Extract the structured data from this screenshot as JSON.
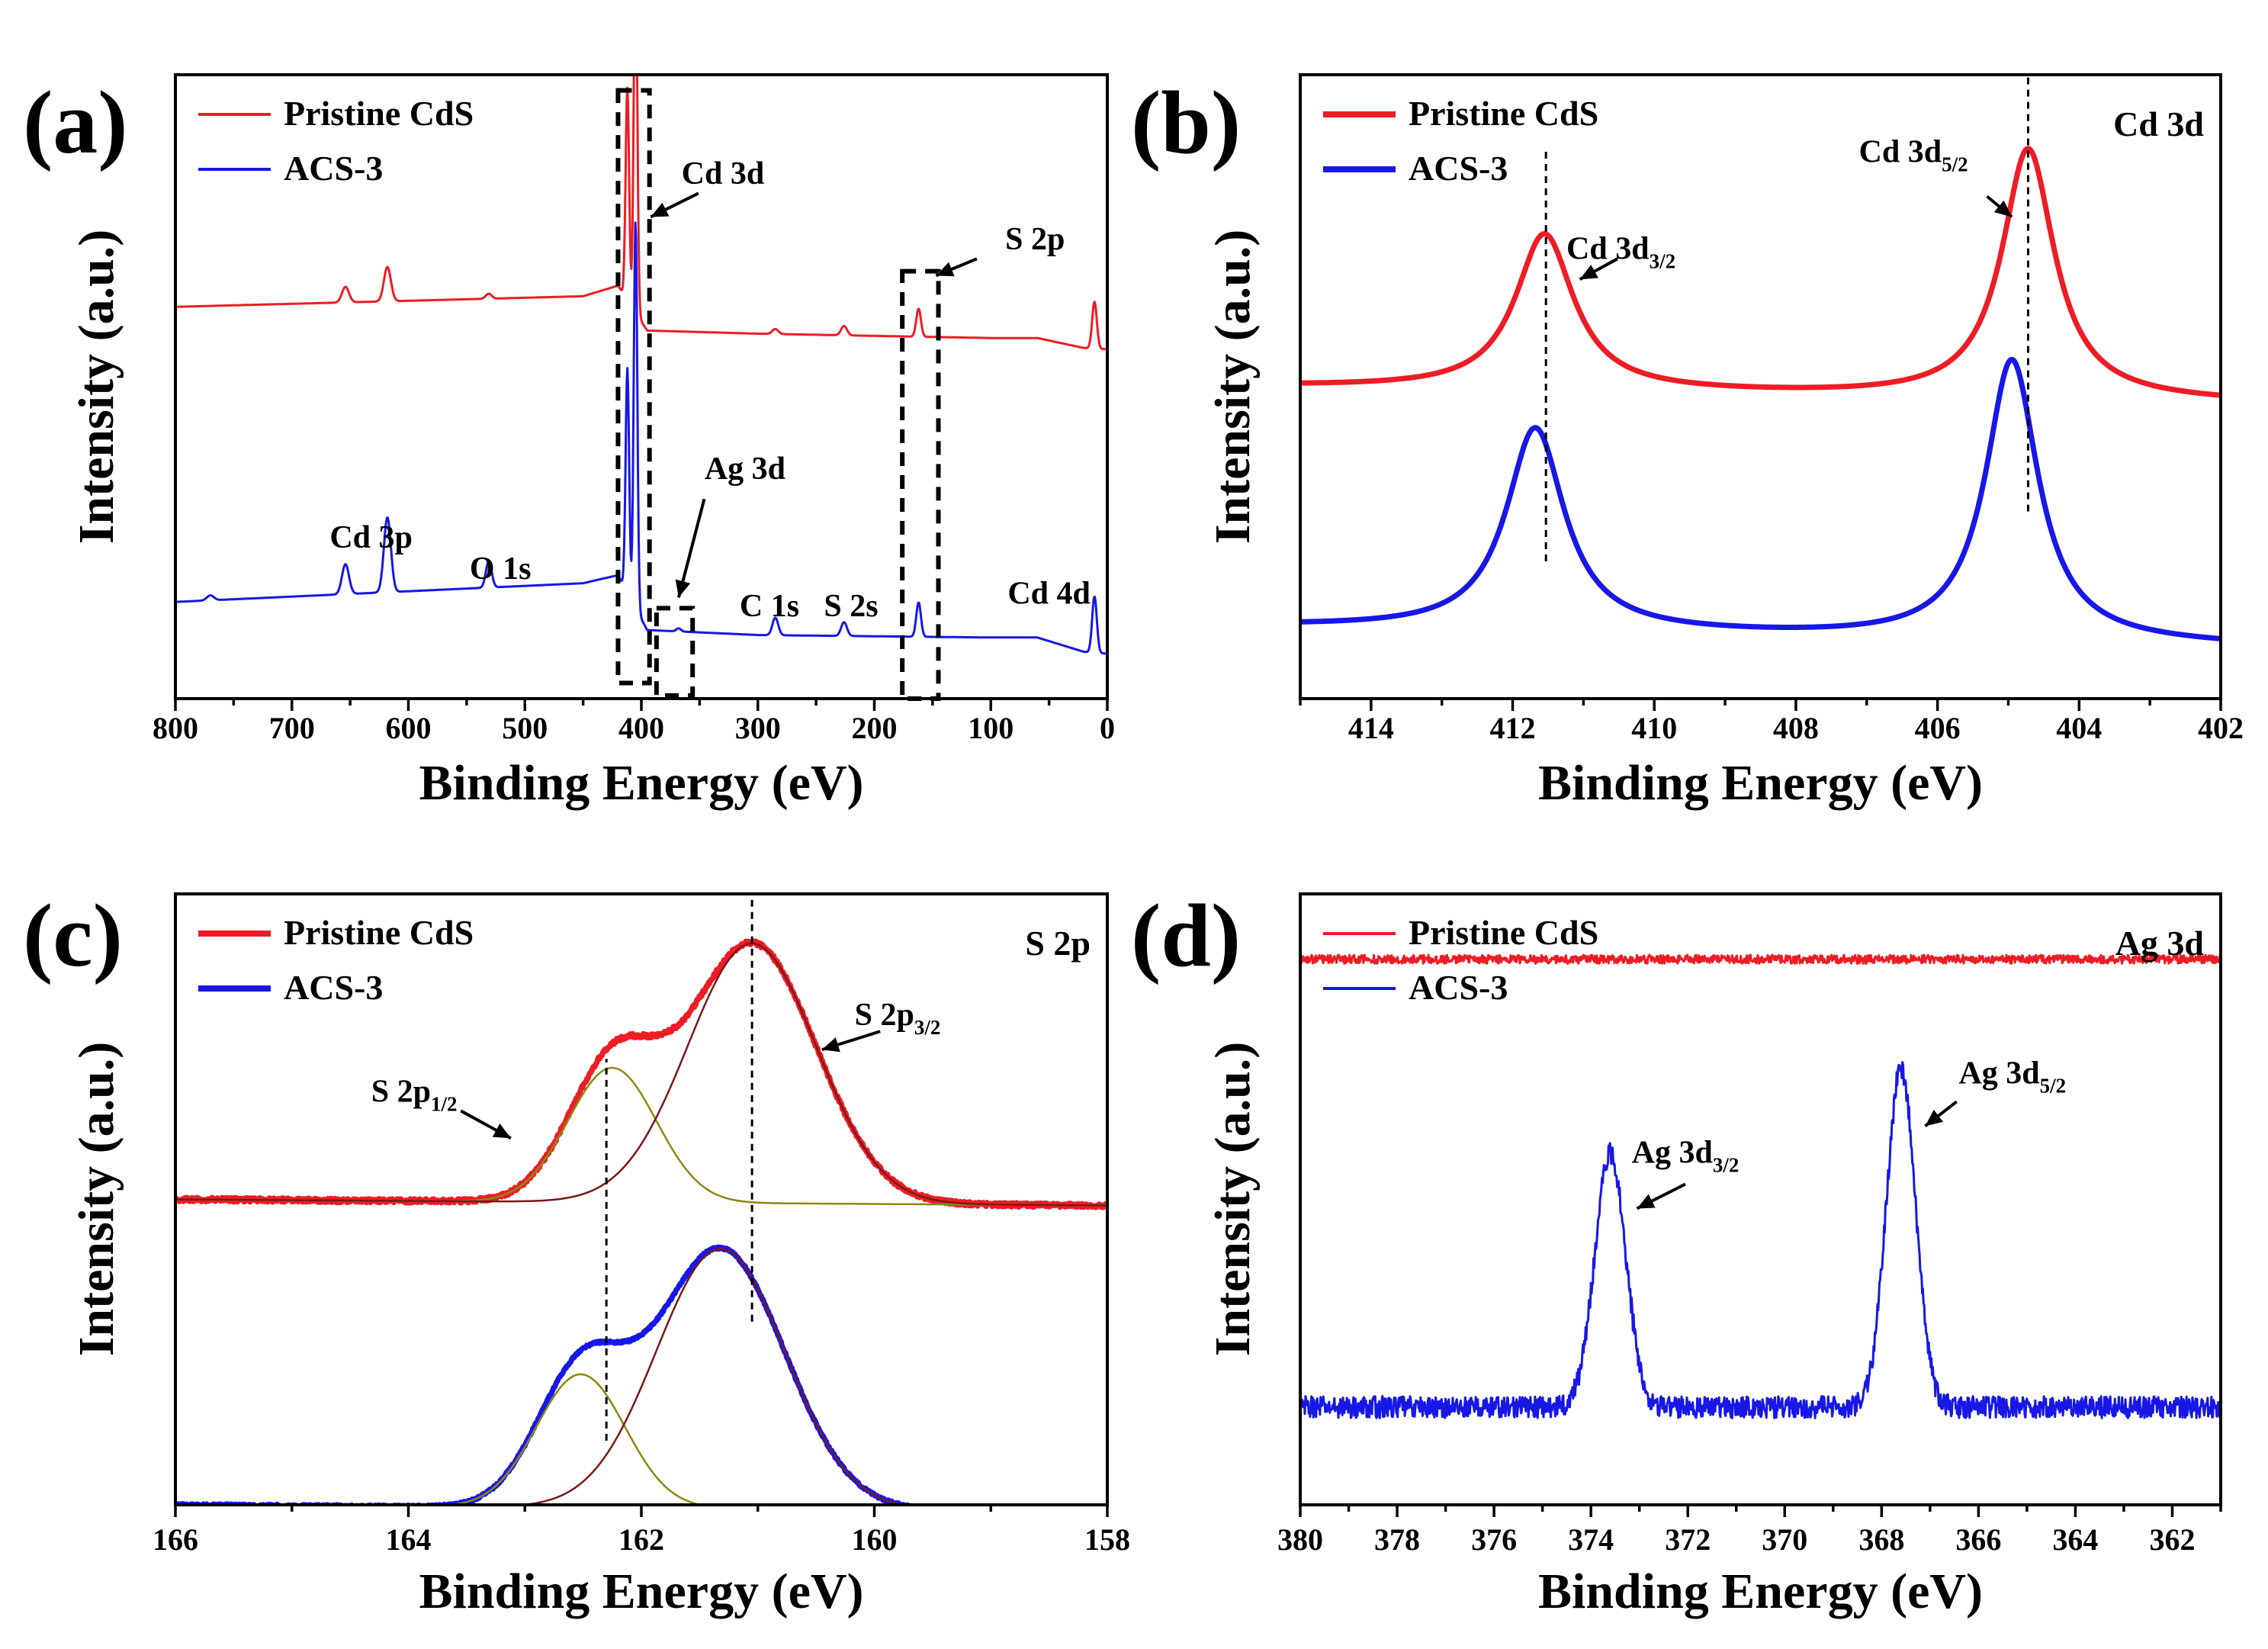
{
  "colors": {
    "pristine": "#ee1c25",
    "acs": "#1717e8",
    "fit_component": "#8a8a10",
    "fit_envelope": "#7a1818",
    "axis": "#000000"
  },
  "chart_data": [
    {
      "id": "a",
      "type": "line",
      "panel_label": "(a)",
      "title": "",
      "xlabel": "Binding Energy (eV)",
      "ylabel": "Intensity (a.u.)",
      "xlim": [
        800,
        0
      ],
      "xticks": [
        800,
        700,
        600,
        500,
        400,
        300,
        200,
        100,
        0
      ],
      "ylim": [
        0,
        10
      ],
      "legend": [
        "Pristine CdS",
        "ACS-3"
      ],
      "legend_position": "top-left",
      "series": [
        {
          "name": "Pristine CdS",
          "color_key": "pristine",
          "line_width": 3,
          "baseline": [
            [
              800,
              6.28
            ],
            [
              450,
              6.45
            ],
            [
              420,
              6.62
            ],
            [
              395,
              5.9
            ],
            [
              300,
              5.85
            ],
            [
              100,
              5.78
            ],
            [
              60,
              5.78
            ],
            [
              20,
              5.62
            ],
            [
              0,
              5.6
            ]
          ],
          "peaks": [
            [
              654,
              0.25,
              3
            ],
            [
              618,
              0.55,
              3
            ],
            [
              531,
              0.08,
              2.5
            ],
            [
              412,
              3.4,
              1.5
            ],
            [
              405,
              5.9,
              1.5
            ],
            [
              285,
              0.08,
              2.5
            ],
            [
              226,
              0.15,
              2.5
            ],
            [
              162,
              0.45,
              2
            ],
            [
              11,
              0.75,
              2
            ]
          ]
        },
        {
          "name": "ACS-3",
          "color_key": "acs",
          "line_width": 3,
          "baseline": [
            [
              800,
              1.55
            ],
            [
              450,
              1.85
            ],
            [
              420,
              1.98
            ],
            [
              395,
              1.1
            ],
            [
              300,
              1.02
            ],
            [
              100,
              0.98
            ],
            [
              60,
              0.98
            ],
            [
              20,
              0.75
            ],
            [
              0,
              0.72
            ]
          ],
          "peaks": [
            [
              770,
              0.08,
              3
            ],
            [
              654,
              0.48,
              3
            ],
            [
              618,
              1.2,
              3
            ],
            [
              531,
              0.42,
              2.5
            ],
            [
              412,
              3.6,
              1.5
            ],
            [
              405,
              6.2,
              1.5
            ],
            [
              368,
              0.05,
              2
            ],
            [
              285,
              0.28,
              2.5
            ],
            [
              226,
              0.22,
              2.5
            ],
            [
              162,
              0.55,
              2
            ],
            [
              11,
              0.9,
              2
            ]
          ]
        }
      ],
      "annotations": [
        {
          "text": "Cd 3d",
          "x": 330,
          "y": 8.25
        },
        {
          "text": "S 2p",
          "x": 62,
          "y": 7.2
        },
        {
          "text": "Ag 3d",
          "x": 311,
          "y": 3.52
        },
        {
          "text": "Cd 3p",
          "x": 632,
          "y": 2.42
        },
        {
          "text": "O 1s",
          "x": 521,
          "y": 1.92
        },
        {
          "text": "C 1s",
          "x": 290,
          "y": 1.32
        },
        {
          "text": "S 2s",
          "x": 220,
          "y": 1.32
        },
        {
          "text": "Cd 4d",
          "x": 50,
          "y": 1.52
        }
      ],
      "boxes": [
        {
          "x": [
            420,
            393
          ],
          "y": [
            0.25,
            9.75
          ]
        },
        {
          "x": [
            387,
            356
          ],
          "y": [
            0.05,
            1.45
          ]
        },
        {
          "x": [
            176,
            145
          ],
          "y": [
            0.0,
            6.85
          ]
        }
      ],
      "arrows": [
        {
          "from": [
            351,
            8.1
          ],
          "to": [
            392,
            7.72
          ]
        },
        {
          "from": [
            112,
            7.05
          ],
          "to": [
            147,
            6.78
          ]
        },
        {
          "from": [
            346,
            3.2
          ],
          "to": [
            368,
            1.62
          ]
        }
      ]
    },
    {
      "id": "b",
      "type": "line",
      "panel_label": "(b)",
      "title": "",
      "corner_label": "Cd 3d",
      "xlabel": "Binding Energy (eV)",
      "ylabel": "Intensity (a.u.)",
      "xlim": [
        415,
        402
      ],
      "xticks": [
        414,
        412,
        410,
        408,
        406,
        404,
        402
      ],
      "ylim": [
        0,
        10
      ],
      "legend": [
        "Pristine CdS",
        "ACS-3"
      ],
      "legend_position": "top-left",
      "series": [
        {
          "name": "Pristine CdS",
          "color_key": "pristine",
          "line_width": 7,
          "baseline": [
            [
              415,
              5.0
            ],
            [
              402,
              4.75
            ]
          ],
          "peaks": [
            [
              411.55,
              2.5,
              0.5,
              "lorentz"
            ],
            [
              404.72,
              4.0,
              0.45,
              "lorentz"
            ]
          ]
        },
        {
          "name": "ACS-3",
          "color_key": "acs",
          "line_width": 7,
          "baseline": [
            [
              415,
              1.15
            ],
            [
              402,
              0.85
            ]
          ],
          "peaks": [
            [
              411.68,
              3.25,
              0.5,
              "lorentz"
            ],
            [
              404.95,
              4.5,
              0.45,
              "lorentz"
            ]
          ]
        }
      ],
      "annotations": [
        {
          "text": "Cd 3d",
          "sub": "3/2",
          "x": 410.47,
          "y": 7.05
        },
        {
          "text": "Cd 3d",
          "sub": "5/2",
          "x": 406.34,
          "y": 8.6
        }
      ],
      "vlines": [
        {
          "x": 411.53,
          "y": [
            2.2,
            8.85
          ]
        },
        {
          "x": 404.72,
          "y": [
            3.0,
            10.0
          ]
        }
      ],
      "arrows": [
        {
          "from": [
            410.52,
            7.05
          ],
          "to": [
            411.05,
            6.72
          ]
        },
        {
          "from": [
            405.3,
            8.05
          ],
          "to": [
            404.95,
            7.72
          ]
        }
      ]
    },
    {
      "id": "c",
      "type": "line",
      "panel_label": "(c)",
      "title": "",
      "corner_label": "S 2p",
      "xlabel": "Binding Energy (eV)",
      "ylabel": "Intensity (a.u.)",
      "xlim": [
        166,
        158
      ],
      "xticks": [
        166,
        164,
        162,
        160,
        158
      ],
      "ylim": [
        0,
        10
      ],
      "legend": [
        "Pristine CdS",
        "ACS-3"
      ],
      "legend_position": "top-left",
      "series": [
        {
          "name": "Pristine CdS",
          "color_key": "pristine",
          "line_width": 7,
          "noise": 0.035,
          "baseline": [
            [
              166,
              5.0
            ],
            [
              158,
              4.9
            ]
          ],
          "peaks": [
            [
              162.25,
              2.2,
              0.38
            ],
            [
              161.05,
              4.25,
              0.55
            ]
          ]
        },
        {
          "name": "ACS-3",
          "color_key": "acs",
          "line_width": 7,
          "noise": 0.02,
          "baseline": [
            [
              166,
              0.0
            ],
            [
              158,
              -0.1
            ]
          ],
          "peaks": [
            [
              162.52,
              2.18,
              0.38
            ],
            [
              161.32,
              4.25,
              0.55
            ]
          ]
        }
      ],
      "fits": [
        {
          "group": "Pristine CdS",
          "components": [
            [
              162.25,
              2.2,
              0.38
            ],
            [
              161.05,
              4.25,
              0.55
            ]
          ]
        },
        {
          "group": "ACS-3",
          "components": [
            [
              162.52,
              2.18,
              0.38
            ],
            [
              161.32,
              4.25,
              0.55
            ]
          ]
        }
      ],
      "annotations": [
        {
          "text": "S 2p",
          "sub": "1/2",
          "x": 163.95,
          "y": 6.6
        },
        {
          "text": "S 2p",
          "sub": "3/2",
          "x": 159.8,
          "y": 7.85
        }
      ],
      "vlines": [
        {
          "x": 162.3,
          "y": [
            1.05,
            7.3
          ]
        },
        {
          "x": 161.05,
          "y": [
            3.0,
            10.0
          ]
        }
      ],
      "arrows": [
        {
          "from": [
            163.55,
            6.45
          ],
          "to": [
            163.12,
            6.0
          ]
        },
        {
          "from": [
            159.95,
            7.75
          ],
          "to": [
            160.45,
            7.45
          ]
        }
      ]
    },
    {
      "id": "d",
      "type": "line",
      "panel_label": "(d)",
      "title": "",
      "corner_label": "Ag 3d",
      "xlabel": "Binding Energy (eV)",
      "ylabel": "Intensity (a.u.)",
      "xlim": [
        380,
        361
      ],
      "xticks": [
        380,
        378,
        376,
        374,
        372,
        370,
        368,
        366,
        364,
        362
      ],
      "ylim": [
        0,
        10
      ],
      "legend": [
        "Pristine CdS",
        "ACS-3"
      ],
      "legend_position": "top-left",
      "series": [
        {
          "name": "Pristine CdS",
          "color_key": "pristine",
          "line_width": 3,
          "noise": 0.07,
          "baseline": [
            [
              380,
              8.93
            ],
            [
              361,
              8.93
            ]
          ],
          "peaks": []
        },
        {
          "name": "ACS-3",
          "color_key": "acs",
          "line_width": 3,
          "noise": 0.18,
          "baseline": [
            [
              380,
              1.6
            ],
            [
              361,
              1.6
            ]
          ],
          "peaks": [
            [
              373.6,
              4.15,
              0.32
            ],
            [
              367.6,
              5.55,
              0.3
            ]
          ]
        }
      ],
      "annotations": [
        {
          "text": "Ag 3d",
          "sub": "3/2",
          "x": 372.05,
          "y": 5.6
        },
        {
          "text": "Ag 3d",
          "sub": "5/2",
          "x": 365.3,
          "y": 6.9
        }
      ],
      "arrows": [
        {
          "from": [
            372.05,
            5.25
          ],
          "to": [
            373.05,
            4.85
          ]
        },
        {
          "from": [
            366.45,
            6.6
          ],
          "to": [
            367.1,
            6.2
          ]
        }
      ]
    }
  ]
}
